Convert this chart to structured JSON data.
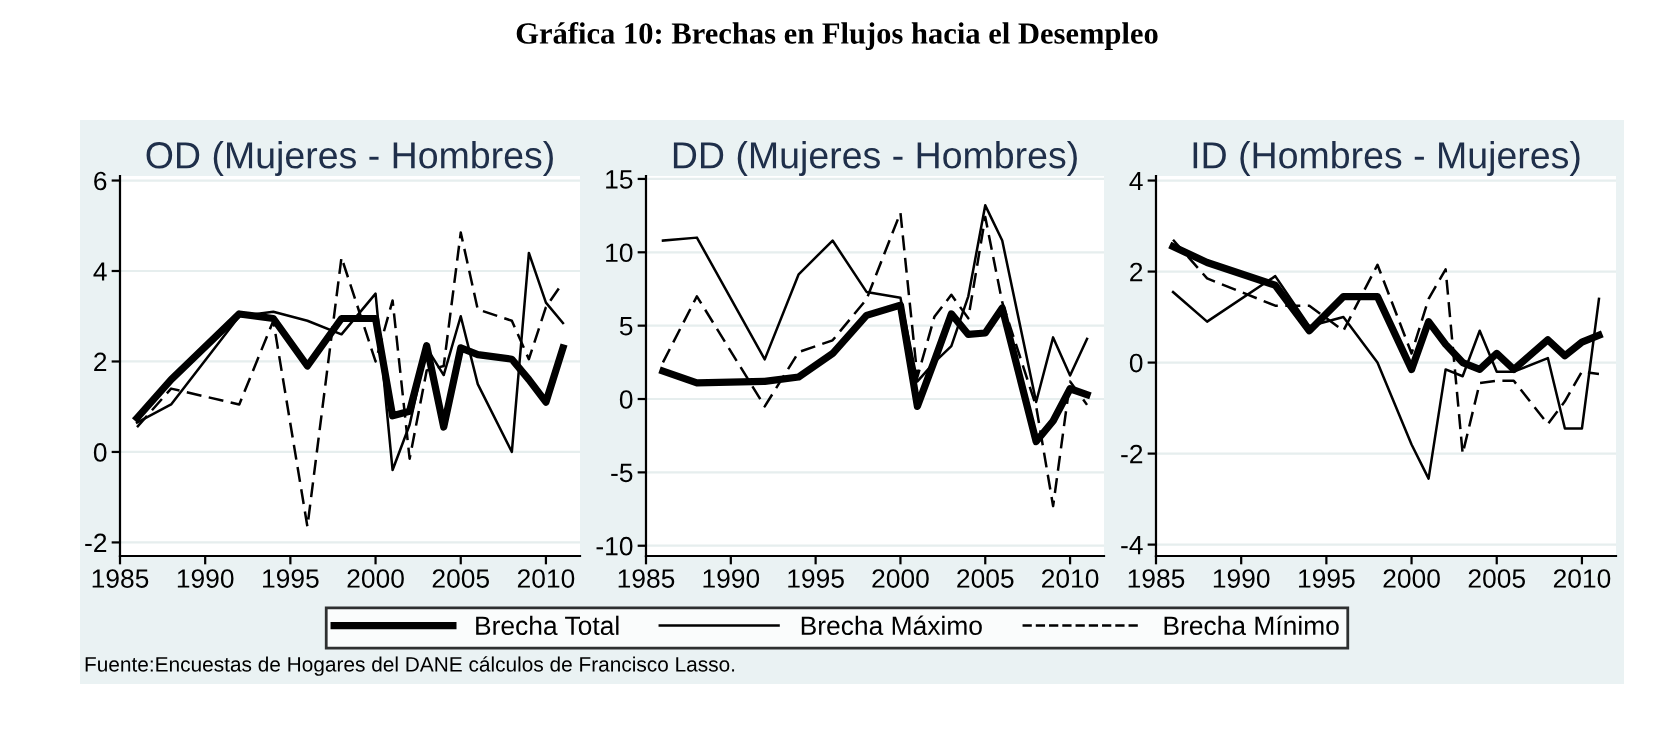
{
  "chart_data": [
    {
      "type": "line",
      "title": "OD (Mujeres - Hombres)",
      "x": [
        1986,
        1988,
        1992,
        1994,
        1996,
        1998,
        2000,
        2001,
        2002,
        2003,
        2004,
        2005,
        2006,
        2008,
        2009,
        2010,
        2011
      ],
      "annotations": [
        "Gráfica 10: Brechas en Flujos hacia el Desempleo",
        "Fuente:Encuestas de Hogares del DANE cálculos de Francisco Lasso."
      ],
      "series": [
        {
          "color": "#000000",
          "line_style": "solid",
          "values": [
            0.75,
            1.6,
            3.05,
            2.95,
            1.9,
            2.95,
            2.95,
            0.8,
            0.9,
            2.35,
            0.55,
            2.3,
            2.15,
            2.05,
            1.6,
            1.1,
            2.3
          ]
        },
        {
          "color": "#000000",
          "line_style": "solid",
          "values": [
            0.65,
            1.05,
            3.0,
            3.1,
            2.9,
            2.6,
            3.5,
            -0.4,
            0.6,
            2.3,
            1.7,
            3.0,
            1.5,
            0.0,
            4.4,
            3.3,
            2.85
          ]
        },
        {
          "color": "#000000",
          "line_style": "dashed",
          "values": [
            0.55,
            1.4,
            1.05,
            2.9,
            -1.65,
            4.3,
            2.0,
            3.35,
            -0.15,
            1.8,
            1.9,
            4.85,
            3.15,
            2.9,
            2.05,
            3.2,
            3.75
          ]
        }
      ],
      "xlim": [
        1985,
        2012
      ],
      "xticks": [
        1985,
        1990,
        1995,
        2000,
        2005,
        2010
      ],
      "ylim": [
        -2.3,
        6.1
      ],
      "yticks": [
        -2,
        0,
        2,
        4,
        6
      ],
      "grid": "y"
    },
    {
      "type": "line",
      "title": "DD (Mujeres - Hombres)",
      "x": [
        1986,
        1988,
        1992,
        1994,
        1996,
        1998,
        2000,
        2001,
        2002,
        2003,
        2004,
        2005,
        2006,
        2008,
        2009,
        2010,
        2011
      ],
      "series": [
        {
          "name": "Brecha Total",
          "color": "#000000",
          "line_style": "solid",
          "values": [
            1.9,
            1.1,
            1.2,
            1.5,
            3.1,
            5.7,
            6.4,
            -0.5,
            2.6,
            5.8,
            4.4,
            4.5,
            6.2,
            -2.9,
            -1.5,
            0.7,
            0.3
          ]
        },
        {
          "name": "Brecha Máximo",
          "color": "#000000",
          "line_style": "solid",
          "values": [
            10.8,
            11.0,
            2.7,
            8.5,
            10.8,
            7.3,
            6.9,
            1.2,
            2.5,
            3.6,
            7.0,
            13.2,
            10.8,
            -0.2,
            4.2,
            1.6,
            4.1
          ]
        },
        {
          "name": "Brecha Mínimo",
          "color": "#000000",
          "line_style": "dashed",
          "values": [
            2.5,
            7.0,
            -0.5,
            3.2,
            4.0,
            6.8,
            12.7,
            1.5,
            5.6,
            7.1,
            5.5,
            12.4,
            6.6,
            -0.5,
            -7.3,
            1.2,
            -0.4
          ]
        }
      ],
      "xlim": [
        1985,
        2012
      ],
      "xticks": [
        1985,
        1990,
        1995,
        2000,
        2005,
        2010
      ],
      "ylim": [
        -10.7,
        15.2
      ],
      "yticks": [
        -10,
        -5,
        0,
        5,
        10,
        15
      ],
      "grid": "y",
      "legend": "bottom"
    },
    {
      "type": "line",
      "title": "ID (Hombres - Mujeres)",
      "x": [
        1986,
        1988,
        1992,
        1994,
        1996,
        1998,
        2000,
        2001,
        2002,
        2003,
        2004,
        2005,
        2006,
        2008,
        2009,
        2010,
        2011
      ],
      "series": [
        {
          "color": "#000000",
          "line_style": "solid",
          "values": [
            2.55,
            2.2,
            1.7,
            0.7,
            1.45,
            1.45,
            -0.15,
            0.9,
            0.4,
            0.0,
            -0.15,
            0.2,
            -0.15,
            0.5,
            0.15,
            0.45,
            0.6
          ]
        },
        {
          "color": "#000000",
          "line_style": "solid",
          "values": [
            1.55,
            0.9,
            1.9,
            0.8,
            1.0,
            0.0,
            -1.8,
            -2.55,
            -0.15,
            -0.3,
            0.7,
            -0.2,
            -0.2,
            0.1,
            -1.45,
            -1.45,
            1.4
          ]
        },
        {
          "color": "#000000",
          "line_style": "dashed",
          "values": [
            2.7,
            1.85,
            1.25,
            1.25,
            0.7,
            2.15,
            0.2,
            1.4,
            2.05,
            -2.0,
            -0.45,
            -0.4,
            -0.4,
            -1.35,
            -0.85,
            -0.2,
            -0.25
          ]
        }
      ],
      "xlim": [
        1985,
        2012
      ],
      "xticks": [
        1985,
        1990,
        1995,
        2000,
        2005,
        2010
      ],
      "ylim": [
        -4.25,
        4.1
      ],
      "yticks": [
        -4,
        -2,
        0,
        2,
        4
      ],
      "grid": "y"
    }
  ]
}
